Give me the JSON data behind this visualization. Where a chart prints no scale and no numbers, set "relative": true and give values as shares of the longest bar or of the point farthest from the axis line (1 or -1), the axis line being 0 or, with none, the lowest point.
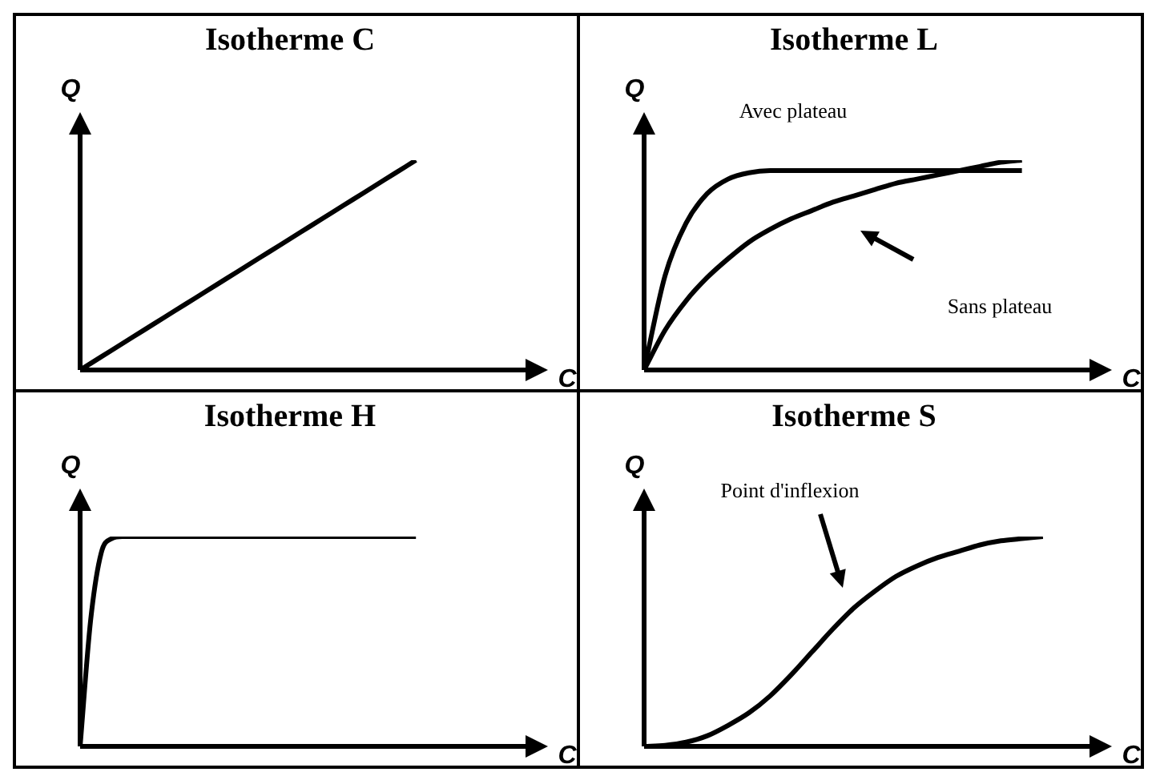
{
  "chart_data": [
    {
      "type": "line",
      "title": "Isotherme C",
      "xlabel": "C",
      "ylabel": "Q",
      "relative": true,
      "marker": "none",
      "categories": [
        null,
        null,
        null,
        null,
        null,
        null,
        null,
        null,
        null,
        null,
        null,
        null,
        null,
        null,
        null,
        null,
        null,
        null,
        null,
        null,
        null
      ],
      "series": [
        {
          "color": "#000000",
          "values": [
            0,
            0.0625,
            0.125,
            0.1875,
            0.25,
            0.3125,
            0.375,
            0.4375,
            0.5,
            0.5625,
            0.625,
            0.6875,
            0.75,
            0.8125,
            0.875,
            0.9375,
            1,
            null,
            null,
            null,
            null
          ]
        }
      ]
    },
    {
      "type": "line",
      "title": "Isotherme L",
      "xlabel": "C",
      "ylabel": "Q",
      "relative": true,
      "marker": "none",
      "categories": [
        null,
        null,
        null,
        null,
        null,
        null,
        null,
        null,
        null,
        null,
        null,
        null,
        null,
        null,
        null,
        null,
        null,
        null,
        null,
        null,
        null
      ],
      "series": [
        {
          "color": "#000000",
          "values": [
            0,
            0.45,
            0.7,
            0.84,
            0.91,
            0.94,
            0.95,
            0.95,
            0.95,
            0.95,
            0.95,
            0.95,
            0.95,
            0.95,
            0.95,
            0.95,
            0.95,
            0.95,
            0.95,
            null,
            null
          ]
        },
        {
          "color": "#000000",
          "values": [
            0,
            0.19,
            0.33,
            0.44,
            0.53,
            0.61,
            0.67,
            0.72,
            0.76,
            0.8,
            0.83,
            0.86,
            0.89,
            0.91,
            0.93,
            0.95,
            0.97,
            0.99,
            1,
            null,
            null
          ]
        }
      ],
      "annotations": [
        "Avec plateau",
        "Sans plateau"
      ]
    },
    {
      "type": "line",
      "title": "Isotherme H",
      "xlabel": "C",
      "ylabel": "Q",
      "relative": true,
      "marker": "none",
      "categories": [
        null,
        null,
        null,
        null,
        null,
        null,
        null,
        null,
        null,
        null,
        null,
        null,
        null,
        null,
        null,
        null,
        null,
        null,
        null,
        null,
        null,
        null,
        null,
        null,
        null,
        null,
        null,
        null,
        null,
        null,
        null,
        null,
        null,
        null,
        null,
        null,
        null,
        null,
        null,
        null,
        null
      ],
      "series": [
        {
          "color": "#000000",
          "values": [
            0,
            0.6,
            0.92,
            0.99,
            1,
            1,
            1,
            1,
            1,
            1,
            1,
            1,
            1,
            1,
            1,
            1,
            1,
            1,
            1,
            1,
            1,
            1,
            1,
            1,
            1,
            1,
            1,
            1,
            1,
            1,
            1,
            1,
            1,
            null,
            null,
            null,
            null,
            null,
            null,
            null,
            null
          ]
        }
      ]
    },
    {
      "type": "line",
      "title": "Isotherme S",
      "xlabel": "C",
      "ylabel": "Q",
      "relative": true,
      "marker": "none",
      "categories": [
        null,
        null,
        null,
        null,
        null,
        null,
        null,
        null,
        null,
        null,
        null,
        null,
        null,
        null,
        null,
        null,
        null,
        null,
        null,
        null,
        null
      ],
      "series": [
        {
          "color": "#000000",
          "values": [
            0,
            0.005,
            0.02,
            0.05,
            0.1,
            0.16,
            0.24,
            0.34,
            0.45,
            0.56,
            0.66,
            0.74,
            0.81,
            0.86,
            0.9,
            0.93,
            0.96,
            0.98,
            0.99,
            1,
            null
          ]
        }
      ],
      "annotations": [
        "Point d'inflexion"
      ]
    }
  ]
}
